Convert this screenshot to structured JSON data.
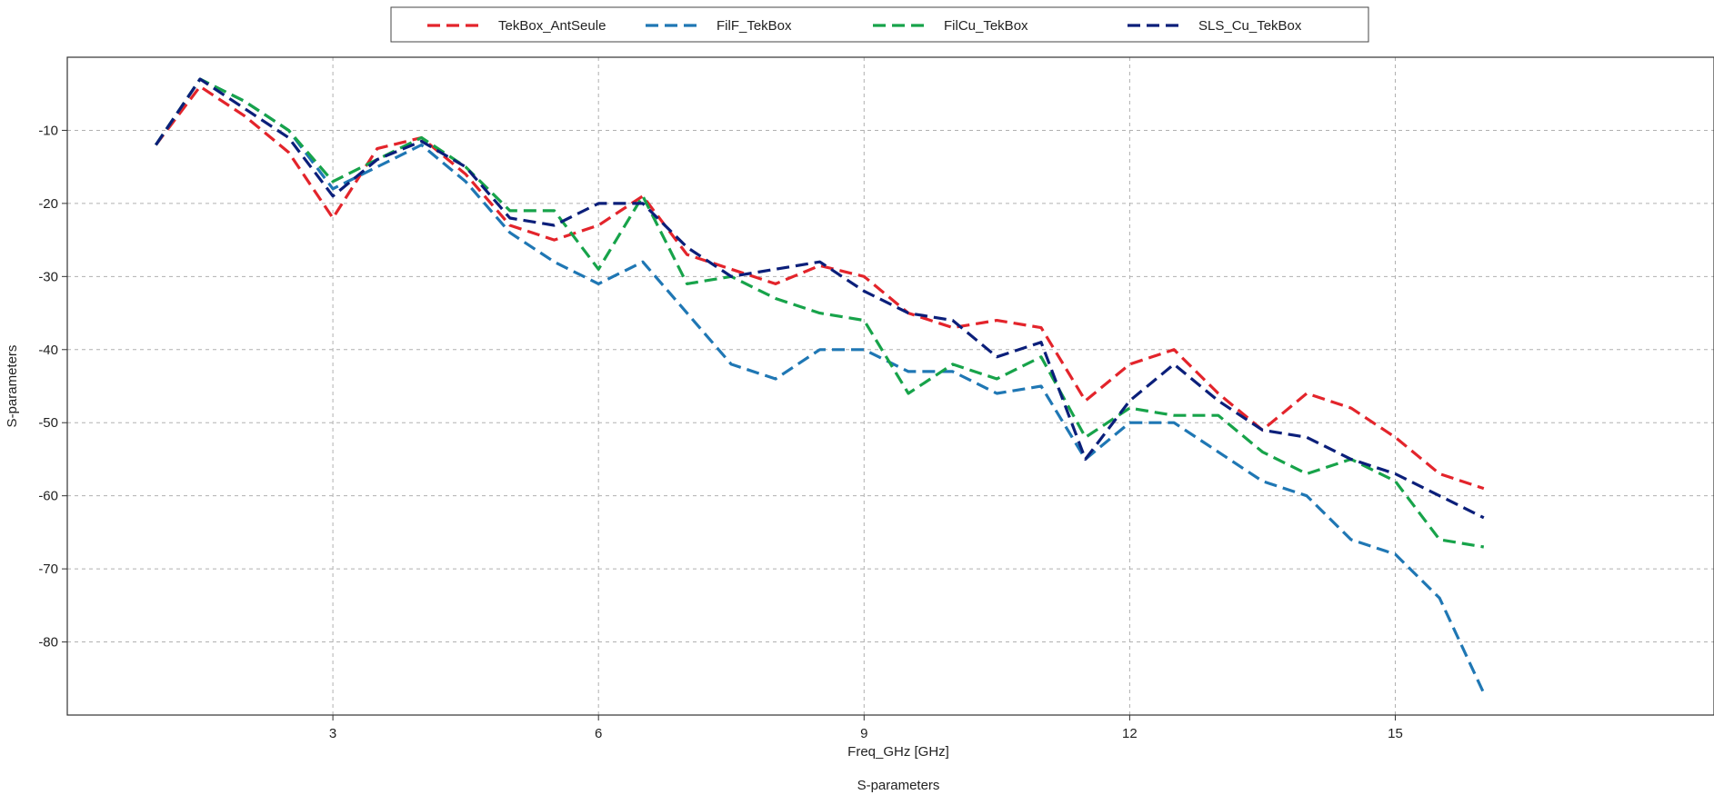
{
  "chart_data": {
    "type": "line",
    "title": "S-parameters",
    "xlabel": "Freq_GHz [GHz]",
    "ylabel": "S-parameters",
    "xlim": [
      0,
      18.6
    ],
    "ylim": [
      -90,
      0
    ],
    "x_ticks": [
      3,
      6,
      9,
      12,
      15
    ],
    "y_ticks": [
      -10,
      -20,
      -30,
      -40,
      -50,
      -60,
      -70,
      -80
    ],
    "x_tick_labels": [
      "3",
      "6",
      "9",
      "12",
      "15"
    ],
    "y_tick_labels": [
      "-10",
      "-20",
      "-30",
      "-40",
      "-50",
      "-60",
      "-70",
      "-80"
    ],
    "grid": true,
    "legend_position": "top-center",
    "line_style": "dashed",
    "x": [
      1.0,
      1.5,
      2.0,
      2.5,
      3.0,
      3.5,
      4.0,
      4.5,
      5.0,
      5.5,
      6.0,
      6.5,
      7.0,
      7.5,
      8.0,
      8.5,
      9.0,
      9.5,
      10.0,
      10.5,
      11.0,
      11.5,
      12.0,
      12.5,
      13.0,
      13.5,
      14.0,
      14.5,
      15.0,
      15.5,
      16.0
    ],
    "series": [
      {
        "name": "TekBox_AntSeule",
        "color": "#e3242b",
        "values": [
          -12.0,
          -4.0,
          -8.0,
          -13.0,
          -22.0,
          -12.5,
          -11.0,
          -16.0,
          -23.0,
          -25.0,
          -23.0,
          -19.0,
          -27.0,
          -29.0,
          -31.0,
          -28.5,
          -30.0,
          -35.0,
          -37.0,
          -36.0,
          -37.0,
          -47.0,
          -42.0,
          -40.0,
          -46.0,
          -51.0,
          -46.0,
          -48.0,
          -52.0,
          -57.0,
          -59.0
        ]
      },
      {
        "name": "FilF_TekBox",
        "color": "#1f77b4",
        "values": [
          -12.0,
          -3.0,
          -6.0,
          -10.0,
          -18.0,
          -15.0,
          -12.0,
          -17.0,
          -24.0,
          -28.0,
          -31.0,
          -28.0,
          -35.0,
          -42.0,
          -44.0,
          -40.0,
          -40.0,
          -43.0,
          -43.0,
          -46.0,
          -45.0,
          -55.0,
          -50.0,
          -50.0,
          -54.0,
          -58.0,
          -60.0,
          -66.0,
          -68.0,
          -74.0,
          -87.0
        ]
      },
      {
        "name": "FilCu_TekBox",
        "color": "#17a34a",
        "values": [
          -12.0,
          -3.0,
          -6.0,
          -10.0,
          -17.0,
          -14.0,
          -11.0,
          -15.0,
          -21.0,
          -21.0,
          -29.0,
          -19.0,
          -31.0,
          -30.0,
          -33.0,
          -35.0,
          -36.0,
          -46.0,
          -42.0,
          -44.0,
          -41.0,
          -52.0,
          -48.0,
          -49.0,
          -49.0,
          -54.0,
          -57.0,
          -55.0,
          -58.0,
          -66.0,
          -67.0
        ]
      },
      {
        "name": "SLS_Cu_TekBox",
        "color": "#0b1f7a",
        "values": [
          -12.0,
          -3.0,
          -7.0,
          -11.0,
          -19.0,
          -14.0,
          -11.5,
          -15.0,
          -22.0,
          -23.0,
          -20.0,
          -20.0,
          -26.0,
          -30.0,
          -29.0,
          -28.0,
          -32.0,
          -35.0,
          -36.0,
          -41.0,
          -39.0,
          -55.0,
          -47.0,
          -42.0,
          -47.0,
          -51.0,
          -52.0,
          -55.0,
          -57.0,
          -60.0,
          -63.0
        ]
      }
    ]
  }
}
